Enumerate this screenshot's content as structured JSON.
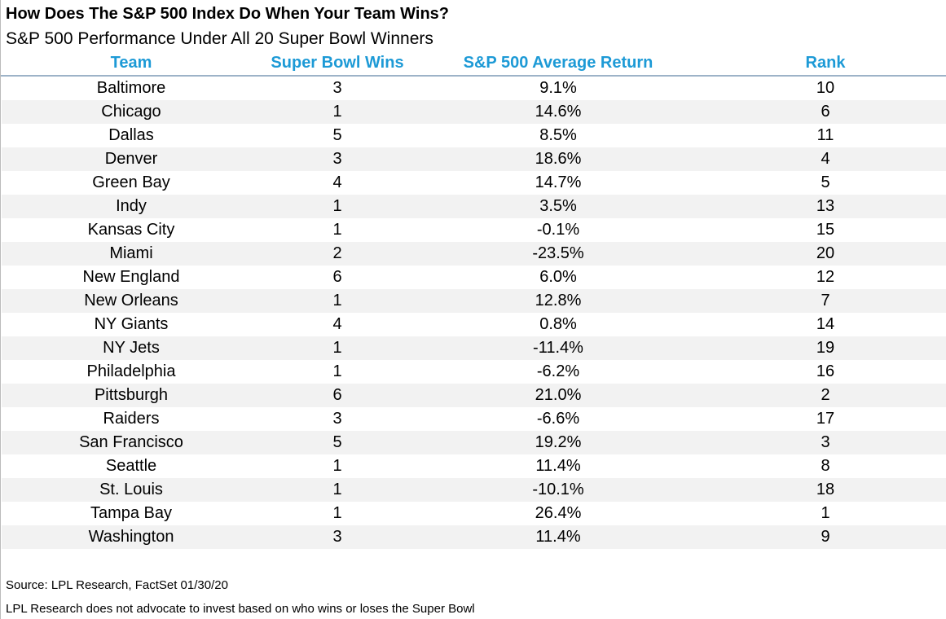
{
  "header": {
    "title": "How Does The S&P 500 Index Do When Your Team Wins?",
    "subtitle": "S&P 500 Performance Under All 20 Super Bowl Winners"
  },
  "table": {
    "columns": [
      "Team",
      "Super Bowl Wins",
      "S&P 500 Average Return",
      "Rank"
    ],
    "rows": [
      [
        "Baltimore",
        "3",
        "9.1%",
        "10"
      ],
      [
        "Chicago",
        "1",
        "14.6%",
        "6"
      ],
      [
        "Dallas",
        "5",
        "8.5%",
        "11"
      ],
      [
        "Denver",
        "3",
        "18.6%",
        "4"
      ],
      [
        "Green Bay",
        "4",
        "14.7%",
        "5"
      ],
      [
        "Indy",
        "1",
        "3.5%",
        "13"
      ],
      [
        "Kansas City",
        "1",
        "-0.1%",
        "15"
      ],
      [
        "Miami",
        "2",
        "-23.5%",
        "20"
      ],
      [
        "New England",
        "6",
        "6.0%",
        "12"
      ],
      [
        "New Orleans",
        "1",
        "12.8%",
        "7"
      ],
      [
        "NY Giants",
        "4",
        "0.8%",
        "14"
      ],
      [
        "NY Jets",
        "1",
        "-11.4%",
        "19"
      ],
      [
        "Philadelphia",
        "1",
        "-6.2%",
        "16"
      ],
      [
        "Pittsburgh",
        "6",
        "21.0%",
        "2"
      ],
      [
        "Raiders",
        "3",
        "-6.6%",
        "17"
      ],
      [
        "San Francisco",
        "5",
        "19.2%",
        "3"
      ],
      [
        "Seattle",
        "1",
        "11.4%",
        "8"
      ],
      [
        "St. Louis",
        "1",
        "-10.1%",
        "18"
      ],
      [
        "Tampa Bay",
        "1",
        "26.4%",
        "1"
      ],
      [
        "Washington",
        "3",
        "11.4%",
        "9"
      ]
    ]
  },
  "footer": {
    "source": "Source: LPL Research, FactSet 01/30/20",
    "note": "LPL Research does not advocate to invest based on who wins or loses the Super Bowl"
  }
}
